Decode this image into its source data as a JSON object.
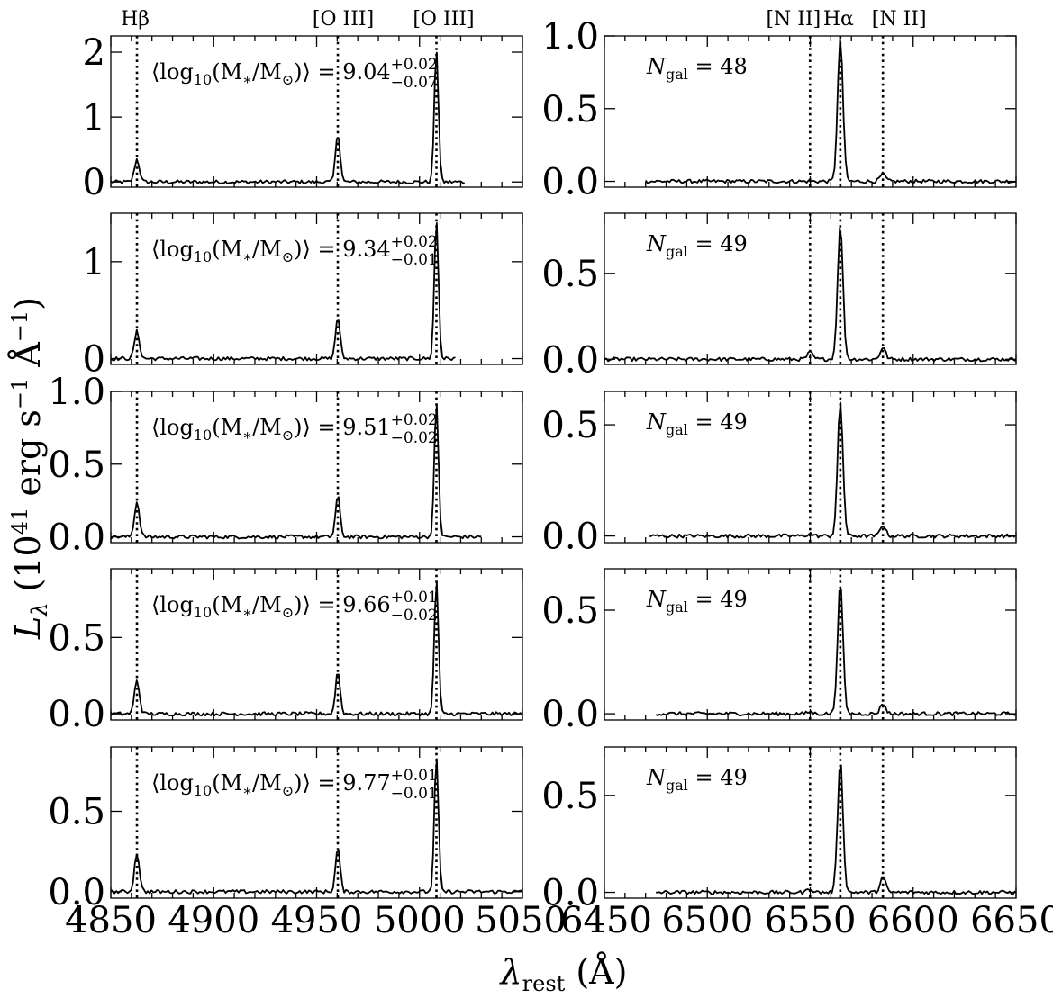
{
  "figure": {
    "ylabel": "L_λ (10^41 erg s^-1 Å^-1)",
    "ylabel_parts": {
      "sym": "L",
      "sub": "λ",
      "pre": " (10",
      "exp1": "41",
      "mid": " erg s",
      "exp2": "−1",
      "mid2": " Å",
      "exp3": "−1",
      "post": ")"
    },
    "xlabel": "λ_rest (Å)",
    "xlabel_parts": {
      "sym": "λ",
      "sub": "rest",
      "post": " (Å)"
    }
  },
  "line_labels": {
    "left": [
      {
        "text": "Hβ",
        "x": 4862.7
      },
      {
        "text": "[O III]",
        "x": 4960.3
      },
      {
        "text": "[O III]",
        "x": 5008.2
      }
    ],
    "right": [
      {
        "text": "[N II]",
        "x": 6549.9
      },
      {
        "text": "Hα",
        "x": 6564.6
      },
      {
        "text": "[N II]",
        "x": 6585.3
      }
    ]
  },
  "chart_data": [
    {
      "type": "line",
      "panel": "row1-left",
      "xlim": [
        4850,
        5050
      ],
      "ylim": [
        -0.08,
        2.25
      ],
      "yticks": [
        "0",
        "1",
        "2"
      ],
      "ytick_values": [
        0,
        1,
        2
      ],
      "xticks": [
        "4850",
        "4900",
        "4950",
        "5000",
        "5050"
      ],
      "annotation": {
        "prefix": "⟨log",
        "sub": "10",
        "mid": "(M",
        "sub2": "∗",
        "mid2": "/M",
        "sub3": "⊙",
        "close": ")⟩ = ",
        "value": "9.04",
        "up": "+0.02",
        "down": "−0.07"
      },
      "data_range": [
        4850,
        5022
      ],
      "lines": [
        {
          "center": 4862.7,
          "amp": 0.35,
          "sigma": 1.2
        },
        {
          "center": 4960.3,
          "amp": 0.75,
          "sigma": 1.1
        },
        {
          "center": 5008.2,
          "amp": 2.05,
          "sigma": 1.0
        }
      ]
    },
    {
      "type": "line",
      "panel": "row1-right",
      "xlim": [
        6450,
        6650
      ],
      "ylim": [
        -0.04,
        1.0
      ],
      "yticks": [
        "0.0",
        "0.5",
        "1.0"
      ],
      "ytick_values": [
        0,
        0.5,
        1.0
      ],
      "xticks": [
        "6450",
        "6500",
        "6550",
        "6600",
        "6650"
      ],
      "annotation": {
        "sym": "N",
        "sub": "gal",
        "eq": " = ",
        "value": "48"
      },
      "data_range": [
        6470,
        6650
      ],
      "lines": [
        {
          "center": 6549.9,
          "amp": 0.0,
          "sigma": 1.3
        },
        {
          "center": 6564.6,
          "amp": 0.98,
          "sigma": 1.3
        },
        {
          "center": 6585.3,
          "amp": 0.05,
          "sigma": 1.3
        }
      ]
    },
    {
      "type": "line",
      "panel": "row2-left",
      "xlim": [
        4850,
        5050
      ],
      "ylim": [
        -0.06,
        1.5
      ],
      "yticks": [
        "0",
        "1"
      ],
      "ytick_values": [
        0,
        1
      ],
      "xticks": [
        "4850",
        "4900",
        "4950",
        "5000",
        "5050"
      ],
      "annotation": {
        "prefix": "⟨log",
        "sub": "10",
        "mid": "(M",
        "sub2": "∗",
        "mid2": "/M",
        "sub3": "⊙",
        "close": ")⟩ = ",
        "value": "9.34",
        "up": "+0.02",
        "down": "−0.01"
      },
      "data_range": [
        4850,
        5018
      ],
      "lines": [
        {
          "center": 4862.7,
          "amp": 0.28,
          "sigma": 1.2
        },
        {
          "center": 4960.3,
          "amp": 0.43,
          "sigma": 1.1
        },
        {
          "center": 5008.2,
          "amp": 1.43,
          "sigma": 1.0
        }
      ]
    },
    {
      "type": "line",
      "panel": "row2-right",
      "xlim": [
        6450,
        6650
      ],
      "ylim": [
        -0.03,
        0.85
      ],
      "yticks": [
        "0.0",
        "0.5"
      ],
      "ytick_values": [
        0,
        0.5
      ],
      "xticks": [
        "6450",
        "6500",
        "6550",
        "6600",
        "6650"
      ],
      "annotation": {
        "sym": "N",
        "sub": "gal",
        "eq": " = ",
        "value": "49"
      },
      "data_range": [
        6450,
        6650
      ],
      "lines": [
        {
          "center": 6549.9,
          "amp": 0.04,
          "sigma": 1.3
        },
        {
          "center": 6564.6,
          "amp": 0.78,
          "sigma": 1.3
        },
        {
          "center": 6585.3,
          "amp": 0.07,
          "sigma": 1.3
        }
      ]
    },
    {
      "type": "line",
      "panel": "row3-left",
      "xlim": [
        4850,
        5050
      ],
      "ylim": [
        -0.04,
        1.0
      ],
      "yticks": [
        "0.0",
        "0.5",
        "1.0"
      ],
      "ytick_values": [
        0,
        0.5,
        1.0
      ],
      "xticks": [
        "4850",
        "4900",
        "4950",
        "5000",
        "5050"
      ],
      "annotation": {
        "prefix": "⟨log",
        "sub": "10",
        "mid": "(M",
        "sub2": "∗",
        "mid2": "/M",
        "sub3": "⊙",
        "close": ")⟩ = ",
        "value": "9.51",
        "up": "+0.02",
        "down": "−0.02"
      },
      "data_range": [
        4850,
        5030
      ],
      "lines": [
        {
          "center": 4862.7,
          "amp": 0.24,
          "sigma": 1.2
        },
        {
          "center": 4960.3,
          "amp": 0.28,
          "sigma": 1.1
        },
        {
          "center": 5008.2,
          "amp": 0.92,
          "sigma": 1.0
        }
      ]
    },
    {
      "type": "line",
      "panel": "row3-right",
      "xlim": [
        6450,
        6650
      ],
      "ylim": [
        -0.03,
        0.65
      ],
      "yticks": [
        "0.0",
        "0.5"
      ],
      "ytick_values": [
        0,
        0.5
      ],
      "xticks": [
        "6450",
        "6500",
        "6550",
        "6600",
        "6650"
      ],
      "annotation": {
        "sym": "N",
        "sub": "gal",
        "eq": " = ",
        "value": "49"
      },
      "data_range": [
        6472,
        6650
      ],
      "lines": [
        {
          "center": 6549.9,
          "amp": 0.01,
          "sigma": 1.3
        },
        {
          "center": 6564.6,
          "amp": 0.6,
          "sigma": 1.3
        },
        {
          "center": 6585.3,
          "amp": 0.05,
          "sigma": 1.3
        }
      ]
    },
    {
      "type": "line",
      "panel": "row4-left",
      "xlim": [
        4850,
        5050
      ],
      "ylim": [
        -0.04,
        0.95
      ],
      "yticks": [
        "0.0",
        "0.5"
      ],
      "ytick_values": [
        0,
        0.5
      ],
      "xticks": [
        "4850",
        "4900",
        "4950",
        "5000",
        "5050"
      ],
      "annotation": {
        "prefix": "⟨log",
        "sub": "10",
        "mid": "(M",
        "sub2": "∗",
        "mid2": "/M",
        "sub3": "⊙",
        "close": ")⟩ = ",
        "value": "9.66",
        "up": "+0.01",
        "down": "−0.02"
      },
      "data_range": [
        4850,
        5050
      ],
      "lines": [
        {
          "center": 4862.7,
          "amp": 0.22,
          "sigma": 1.2
        },
        {
          "center": 4960.3,
          "amp": 0.28,
          "sigma": 1.1
        },
        {
          "center": 5008.2,
          "amp": 0.88,
          "sigma": 1.0
        }
      ]
    },
    {
      "type": "line",
      "panel": "row4-right",
      "xlim": [
        6450,
        6650
      ],
      "ylim": [
        -0.03,
        0.7
      ],
      "yticks": [
        "0.0",
        "0.5"
      ],
      "ytick_values": [
        0,
        0.5
      ],
      "xticks": [
        "6450",
        "6500",
        "6550",
        "6600",
        "6650"
      ],
      "annotation": {
        "sym": "N",
        "sub": "gal",
        "eq": " = ",
        "value": "49"
      },
      "data_range": [
        6475,
        6650
      ],
      "lines": [
        {
          "center": 6549.9,
          "amp": 0.01,
          "sigma": 1.3
        },
        {
          "center": 6564.6,
          "amp": 0.63,
          "sigma": 1.3
        },
        {
          "center": 6585.3,
          "amp": 0.05,
          "sigma": 1.3
        }
      ]
    },
    {
      "type": "line",
      "panel": "row5-left",
      "xlim": [
        4850,
        5050
      ],
      "ylim": [
        -0.04,
        0.9
      ],
      "yticks": [
        "0.0",
        "0.5"
      ],
      "ytick_values": [
        0,
        0.5
      ],
      "xticks": [
        "4850",
        "4900",
        "4950",
        "5000",
        "5050"
      ],
      "annotation": {
        "prefix": "⟨log",
        "sub": "10",
        "mid": "(M",
        "sub2": "∗",
        "mid2": "/M",
        "sub3": "⊙",
        "close": ")⟩ = ",
        "value": "9.77",
        "up": "+0.01",
        "down": "−0.01"
      },
      "data_range": [
        4850,
        5050
      ],
      "lines": [
        {
          "center": 4862.7,
          "amp": 0.24,
          "sigma": 1.2
        },
        {
          "center": 4960.3,
          "amp": 0.27,
          "sigma": 1.1
        },
        {
          "center": 5008.2,
          "amp": 0.84,
          "sigma": 1.0
        }
      ]
    },
    {
      "type": "line",
      "panel": "row5-right",
      "xlim": [
        6450,
        6650
      ],
      "ylim": [
        -0.03,
        0.75
      ],
      "yticks": [
        "0.0",
        "0.5"
      ],
      "ytick_values": [
        0,
        0.5
      ],
      "xticks": [
        "6450",
        "6500",
        "6550",
        "6600",
        "6650"
      ],
      "annotation": {
        "sym": "N",
        "sub": "gal",
        "eq": " = ",
        "value": "49"
      },
      "data_range": [
        6475,
        6650
      ],
      "lines": [
        {
          "center": 6549.9,
          "amp": 0.02,
          "sigma": 1.3
        },
        {
          "center": 6564.6,
          "amp": 0.68,
          "sigma": 1.3
        },
        {
          "center": 6585.3,
          "amp": 0.08,
          "sigma": 1.3
        }
      ]
    }
  ]
}
